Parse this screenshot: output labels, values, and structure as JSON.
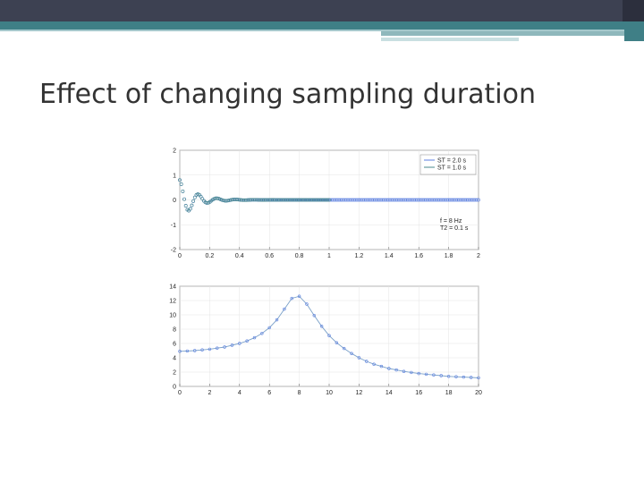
{
  "slide": {
    "title": "Effect of changing sampling duration"
  },
  "colors": {
    "header_dark": "#3d4152",
    "header_accent": "#3f7f86",
    "series_blue": "#5b7fe0",
    "series_teal": "#4a8a8c",
    "series_light": "#7aa0c8"
  },
  "chart_data": [
    {
      "type": "scatter",
      "xlim": [
        0,
        2
      ],
      "ylim": [
        -2,
        2
      ],
      "xticks": [
        "0",
        "0.2",
        "0.4",
        "0.6",
        "0.8",
        "1",
        "1.2",
        "1.4",
        "1.6",
        "1.8",
        "2"
      ],
      "yticks": [
        "2",
        "1",
        "0",
        "-1",
        "-2"
      ],
      "legend": {
        "placement": "top-right",
        "entries": [
          "ST = 2.0 s",
          "ST = 1.0 s"
        ]
      },
      "annotations": [
        "f = 8 Hz",
        "T2 = 0.1 s"
      ],
      "series": [
        {
          "name": "ST = 2.0 s",
          "t_range": [
            0,
            2.0
          ],
          "n_points": 200,
          "amplitude": 0.8,
          "freq_hz": 8,
          "decay_s": 0.1
        },
        {
          "name": "ST = 1.0 s",
          "t_range": [
            0,
            1.0
          ],
          "n_points": 100,
          "amplitude": 0.8,
          "freq_hz": 8,
          "decay_s": 0.1
        }
      ]
    },
    {
      "type": "line",
      "xlim": [
        0,
        20
      ],
      "ylim": [
        0,
        14
      ],
      "xticks": [
        "0",
        "2",
        "4",
        "6",
        "8",
        "10",
        "12",
        "14",
        "16",
        "18",
        "20"
      ],
      "yticks": [
        "14",
        "12",
        "10",
        "8",
        "6",
        "4",
        "2",
        "0"
      ],
      "series": [
        {
          "x": [
            0,
            0.5,
            1,
            1.5,
            2,
            2.5,
            3,
            3.5,
            4,
            4.5,
            5,
            5.5,
            6,
            6.5,
            7,
            7.5,
            8,
            8.5,
            9,
            9.5,
            10,
            10.5,
            11,
            11.5,
            12,
            12.5,
            13,
            13.5,
            14,
            14.5,
            15,
            15.5,
            16,
            16.5,
            17,
            17.5,
            18,
            18.5,
            19,
            19.5,
            20
          ],
          "y": [
            4.9,
            4.95,
            5.0,
            5.1,
            5.2,
            5.35,
            5.5,
            5.75,
            6.0,
            6.35,
            6.8,
            7.4,
            8.2,
            9.3,
            10.8,
            12.3,
            12.6,
            11.5,
            9.9,
            8.4,
            7.1,
            6.1,
            5.3,
            4.6,
            4.0,
            3.5,
            3.1,
            2.8,
            2.5,
            2.3,
            2.1,
            1.95,
            1.8,
            1.7,
            1.6,
            1.5,
            1.4,
            1.35,
            1.3,
            1.25,
            1.2
          ]
        }
      ]
    }
  ]
}
